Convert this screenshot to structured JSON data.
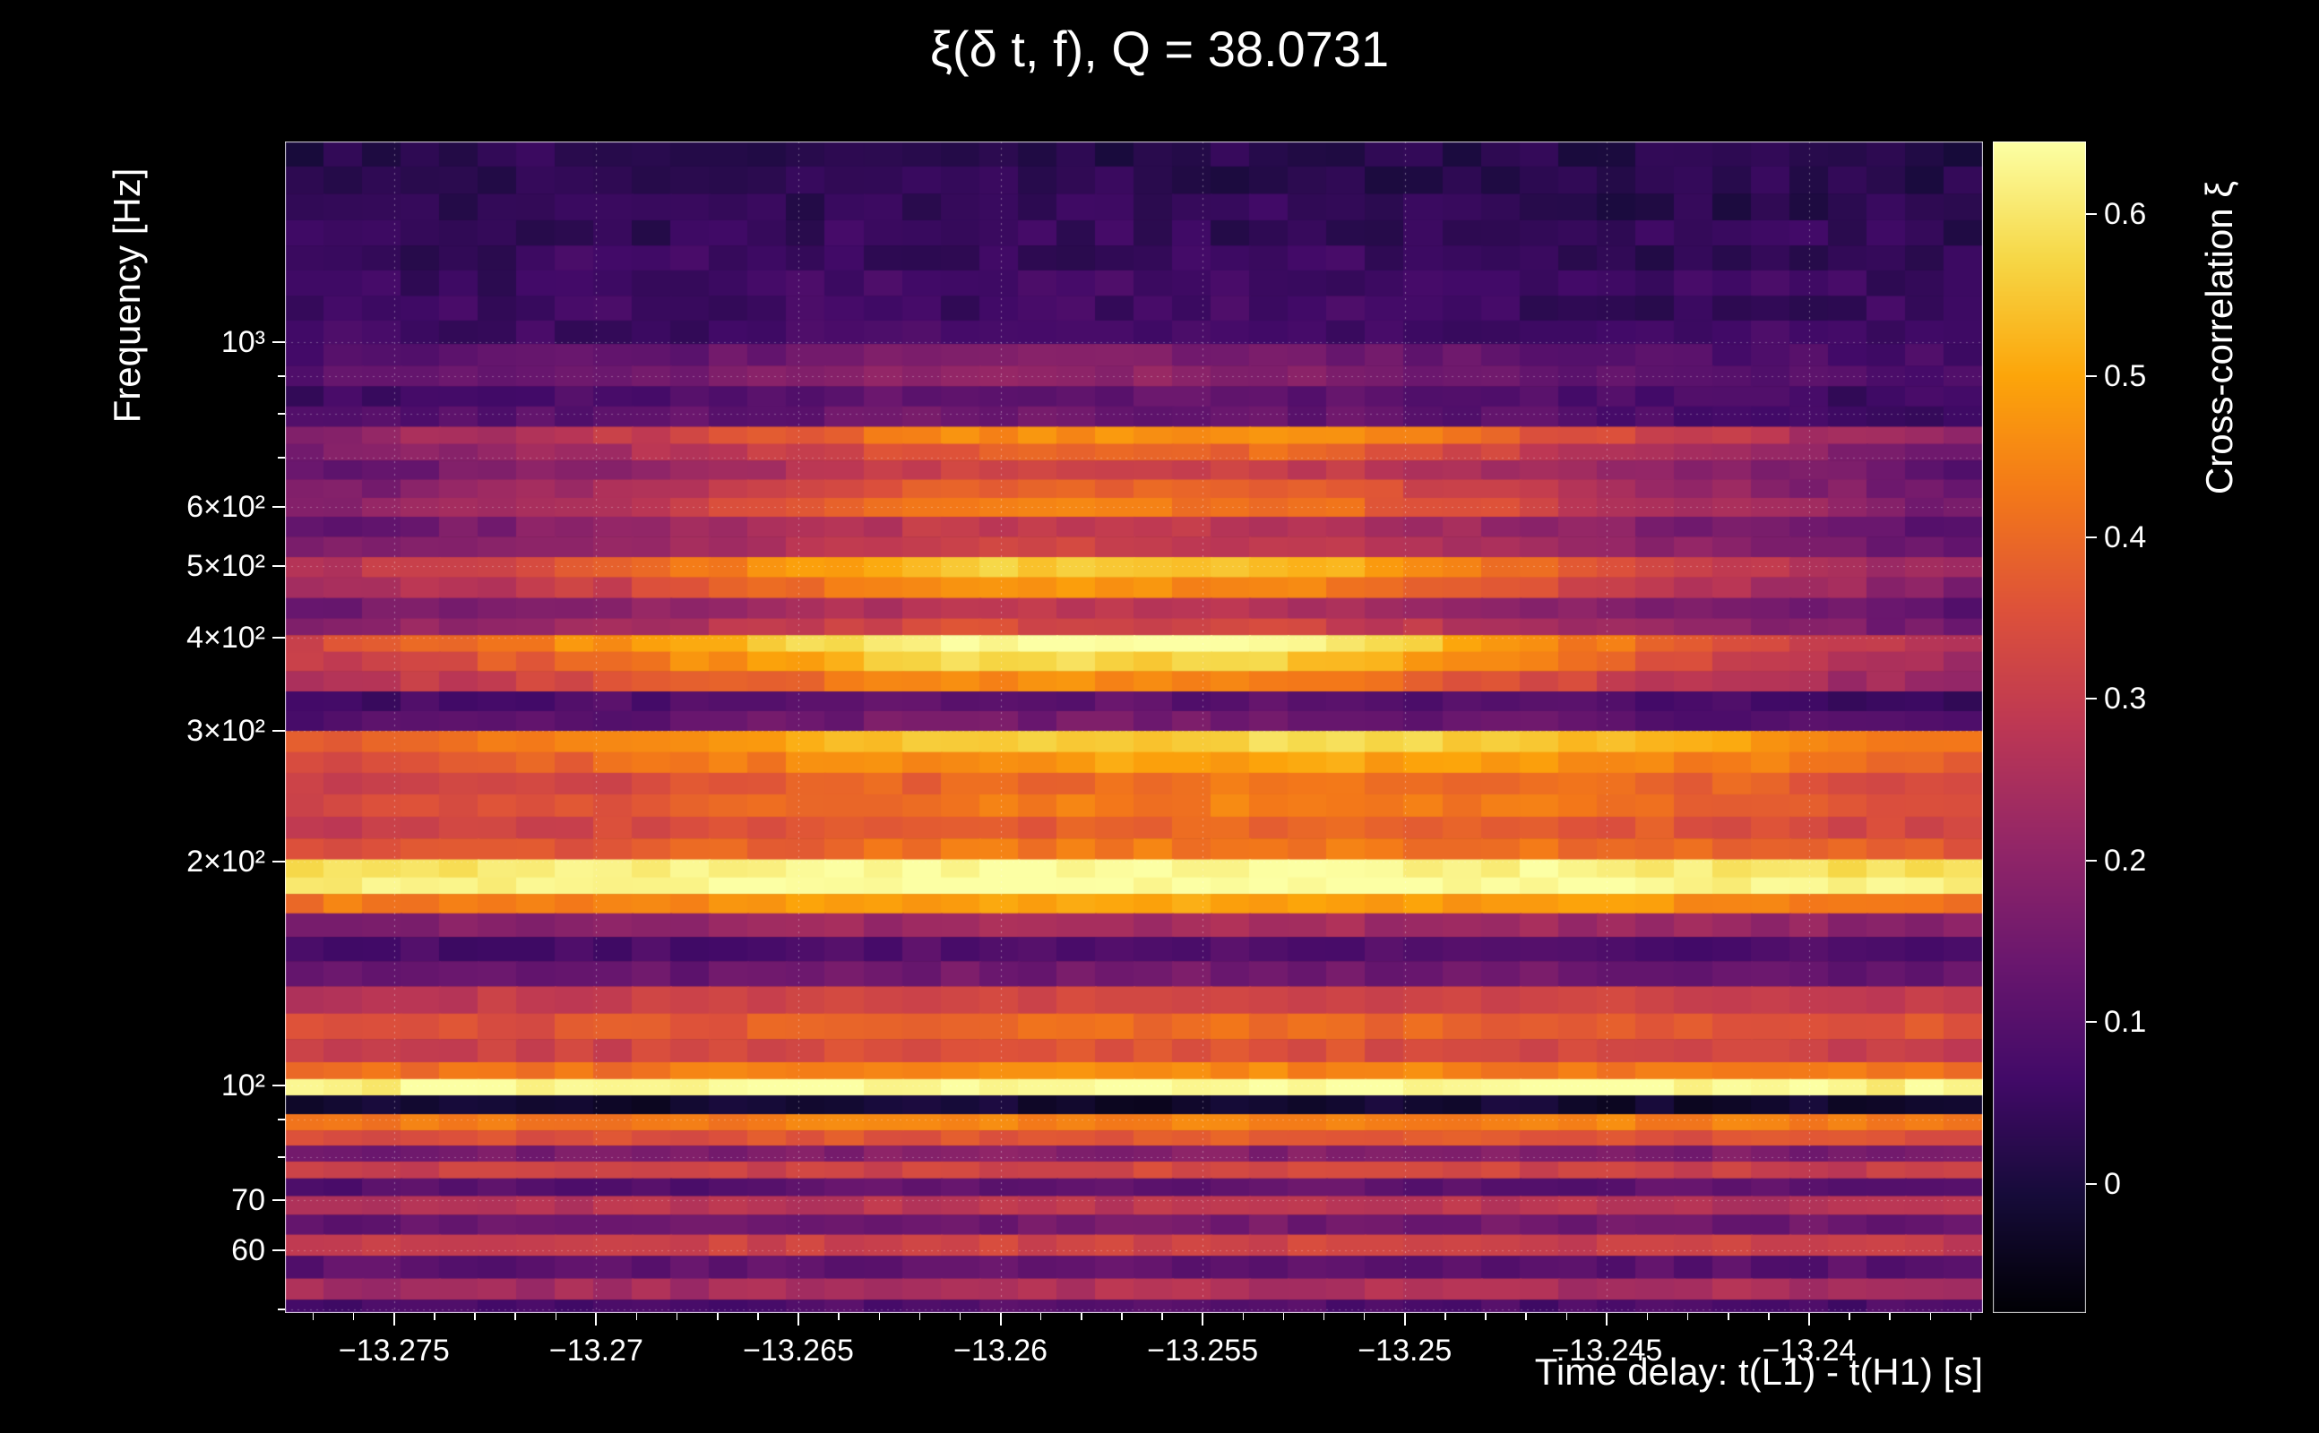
{
  "colors": {
    "background": "#000000",
    "text": "#ffffff",
    "grid": "#ffffff"
  },
  "chart_data": {
    "type": "heatmap",
    "title": "ξ(δ t, f), Q = 38.0731",
    "xlabel": "Time delay: t(L1) - t(H1) [s]",
    "ylabel": "Frequency [Hz]",
    "colorbar_label": "Cross-correlation ξ",
    "x_range": [
      -13.2777,
      -13.2357
    ],
    "y_range_hz": [
      49.4,
      1862
    ],
    "y_scale": "log",
    "value_range": [
      -0.08,
      0.645
    ],
    "time_bins": 44,
    "time_points_frac": [
      0,
      0.2,
      0.4,
      0.6,
      0.8,
      1
    ],
    "x_ticks": [
      {
        "value": -13.275,
        "label": "−13.275"
      },
      {
        "value": -13.27,
        "label": "−13.27"
      },
      {
        "value": -13.265,
        "label": "−13.265"
      },
      {
        "value": -13.26,
        "label": "−13.26"
      },
      {
        "value": -13.255,
        "label": "−13.255"
      },
      {
        "value": -13.25,
        "label": "−13.25"
      },
      {
        "value": -13.245,
        "label": "−13.245"
      },
      {
        "value": -13.24,
        "label": "−13.24"
      }
    ],
    "y_ticks": [
      {
        "value": 1000,
        "label": "10³"
      },
      {
        "value": 900
      },
      {
        "value": 800
      },
      {
        "value": 700
      },
      {
        "value": 600,
        "label": "6×10²"
      },
      {
        "value": 500,
        "label": "5×10²"
      },
      {
        "value": 400,
        "label": "4×10²"
      },
      {
        "value": 300,
        "label": "3×10²"
      },
      {
        "value": 200,
        "label": "2×10²"
      },
      {
        "value": 100,
        "label": "10²"
      },
      {
        "value": 90
      },
      {
        "value": 80
      },
      {
        "value": 70,
        "label": "70"
      },
      {
        "value": 60,
        "label": "60"
      },
      {
        "value": 50
      }
    ],
    "colorbar_ticks": [
      {
        "value": 0.6,
        "label": "0.6"
      },
      {
        "value": 0.5,
        "label": "0.5"
      },
      {
        "value": 0.4,
        "label": "0.4"
      },
      {
        "value": 0.3,
        "label": "0.3"
      },
      {
        "value": 0.2,
        "label": "0.2"
      },
      {
        "value": 0.1,
        "label": "0.1"
      },
      {
        "value": 0,
        "label": "0"
      }
    ],
    "colormap_stops": [
      [
        0.0,
        "#000004"
      ],
      [
        0.1,
        "#160b39"
      ],
      [
        0.2,
        "#420a68"
      ],
      [
        0.3,
        "#6a176e"
      ],
      [
        0.4,
        "#932667"
      ],
      [
        0.5,
        "#bc3754"
      ],
      [
        0.6,
        "#dd513a"
      ],
      [
        0.7,
        "#f37819"
      ],
      [
        0.8,
        "#fca50a"
      ],
      [
        0.9,
        "#f6d746"
      ],
      [
        1.0,
        "#fcffa4"
      ]
    ],
    "rows": [
      [
        1800,
        0.02,
        0.04,
        0.01,
        0.03,
        0.02,
        0.01
      ],
      [
        1650,
        0.04,
        0.02,
        0.05,
        0.02,
        0.04,
        0.02
      ],
      [
        1520,
        0.02,
        0.05,
        0.03,
        0.05,
        0.02,
        0.04
      ],
      [
        1400,
        0.05,
        0.03,
        0.06,
        0.03,
        0.05,
        0.03
      ],
      [
        1300,
        0.03,
        0.06,
        0.04,
        0.06,
        0.03,
        0.05
      ],
      [
        1200,
        0.06,
        0.04,
        0.08,
        0.05,
        0.07,
        0.04
      ],
      [
        1110,
        0.04,
        0.07,
        0.05,
        0.08,
        0.04,
        0.06
      ],
      [
        1030,
        0.07,
        0.05,
        0.09,
        0.06,
        0.08,
        0.05
      ],
      [
        960,
        0.08,
        0.12,
        0.18,
        0.15,
        0.1,
        0.07
      ],
      [
        900,
        0.1,
        0.15,
        0.22,
        0.18,
        0.12,
        0.08
      ],
      [
        845,
        0.06,
        0.09,
        0.13,
        0.11,
        0.08,
        0.05
      ],
      [
        795,
        0.08,
        0.11,
        0.15,
        0.13,
        0.09,
        0.06
      ],
      [
        745,
        0.18,
        0.3,
        0.45,
        0.48,
        0.32,
        0.18
      ],
      [
        715,
        0.15,
        0.25,
        0.38,
        0.4,
        0.26,
        0.14
      ],
      [
        672,
        0.12,
        0.2,
        0.32,
        0.3,
        0.2,
        0.11
      ],
      [
        635,
        0.15,
        0.25,
        0.4,
        0.38,
        0.24,
        0.13
      ],
      [
        600,
        0.18,
        0.28,
        0.44,
        0.42,
        0.27,
        0.15
      ],
      [
        565,
        0.12,
        0.2,
        0.3,
        0.28,
        0.18,
        0.1
      ],
      [
        530,
        0.15,
        0.22,
        0.32,
        0.3,
        0.2,
        0.12
      ],
      [
        498,
        0.25,
        0.38,
        0.56,
        0.54,
        0.35,
        0.2
      ],
      [
        468,
        0.22,
        0.32,
        0.48,
        0.45,
        0.3,
        0.17
      ],
      [
        438,
        0.14,
        0.2,
        0.28,
        0.26,
        0.18,
        0.11
      ],
      [
        412,
        0.18,
        0.25,
        0.34,
        0.32,
        0.22,
        0.14
      ],
      [
        395,
        0.32,
        0.48,
        0.65,
        0.62,
        0.4,
        0.25
      ],
      [
        372,
        0.28,
        0.42,
        0.58,
        0.55,
        0.36,
        0.22
      ],
      [
        350,
        0.25,
        0.35,
        0.46,
        0.44,
        0.3,
        0.2
      ],
      [
        328,
        0.06,
        0.09,
        0.12,
        0.11,
        0.08,
        0.05
      ],
      [
        310,
        0.09,
        0.12,
        0.16,
        0.15,
        0.11,
        0.08
      ],
      [
        290,
        0.38,
        0.45,
        0.55,
        0.58,
        0.52,
        0.42
      ],
      [
        272,
        0.34,
        0.4,
        0.48,
        0.5,
        0.46,
        0.38
      ],
      [
        255,
        0.3,
        0.34,
        0.4,
        0.42,
        0.4,
        0.33
      ],
      [
        238,
        0.32,
        0.36,
        0.42,
        0.44,
        0.41,
        0.35
      ],
      [
        222,
        0.3,
        0.33,
        0.38,
        0.39,
        0.37,
        0.31
      ],
      [
        208,
        0.34,
        0.37,
        0.42,
        0.43,
        0.41,
        0.36
      ],
      [
        195,
        0.58,
        0.61,
        0.64,
        0.64,
        0.62,
        0.58
      ],
      [
        186,
        0.62,
        0.64,
        0.65,
        0.65,
        0.64,
        0.61
      ],
      [
        176,
        0.42,
        0.45,
        0.5,
        0.5,
        0.47,
        0.43
      ],
      [
        165,
        0.18,
        0.2,
        0.24,
        0.24,
        0.22,
        0.19
      ],
      [
        152,
        0.07,
        0.08,
        0.1,
        0.1,
        0.09,
        0.07
      ],
      [
        142,
        0.12,
        0.13,
        0.15,
        0.15,
        0.14,
        0.12
      ],
      [
        130,
        0.28,
        0.3,
        0.33,
        0.33,
        0.31,
        0.28
      ],
      [
        120,
        0.34,
        0.36,
        0.4,
        0.4,
        0.38,
        0.35
      ],
      [
        111,
        0.3,
        0.32,
        0.35,
        0.35,
        0.33,
        0.3
      ],
      [
        104,
        0.4,
        0.42,
        0.45,
        0.45,
        0.43,
        0.41
      ],
      [
        100,
        0.62,
        0.63,
        0.65,
        0.65,
        0.64,
        0.62
      ],
      [
        94,
        -0.03,
        -0.02,
        -0.02,
        -0.02,
        -0.02,
        -0.03
      ],
      [
        89,
        0.42,
        0.43,
        0.45,
        0.45,
        0.44,
        0.42
      ],
      [
        85,
        0.34,
        0.35,
        0.37,
        0.37,
        0.36,
        0.34
      ],
      [
        81,
        0.16,
        0.17,
        0.18,
        0.18,
        0.17,
        0.16
      ],
      [
        77,
        0.3,
        0.31,
        0.33,
        0.33,
        0.31,
        0.3
      ],
      [
        73,
        0.1,
        0.1,
        0.12,
        0.12,
        0.11,
        0.1
      ],
      [
        69,
        0.26,
        0.27,
        0.28,
        0.28,
        0.27,
        0.26
      ],
      [
        65,
        0.13,
        0.13,
        0.15,
        0.15,
        0.14,
        0.13
      ],
      [
        61,
        0.3,
        0.31,
        0.32,
        0.32,
        0.31,
        0.3
      ],
      [
        57,
        0.11,
        0.11,
        0.12,
        0.12,
        0.11,
        0.11
      ],
      [
        53,
        0.24,
        0.24,
        0.26,
        0.26,
        0.25,
        0.24
      ],
      [
        50,
        0.08,
        0.08,
        0.09,
        0.09,
        0.08,
        0.08
      ]
    ]
  }
}
